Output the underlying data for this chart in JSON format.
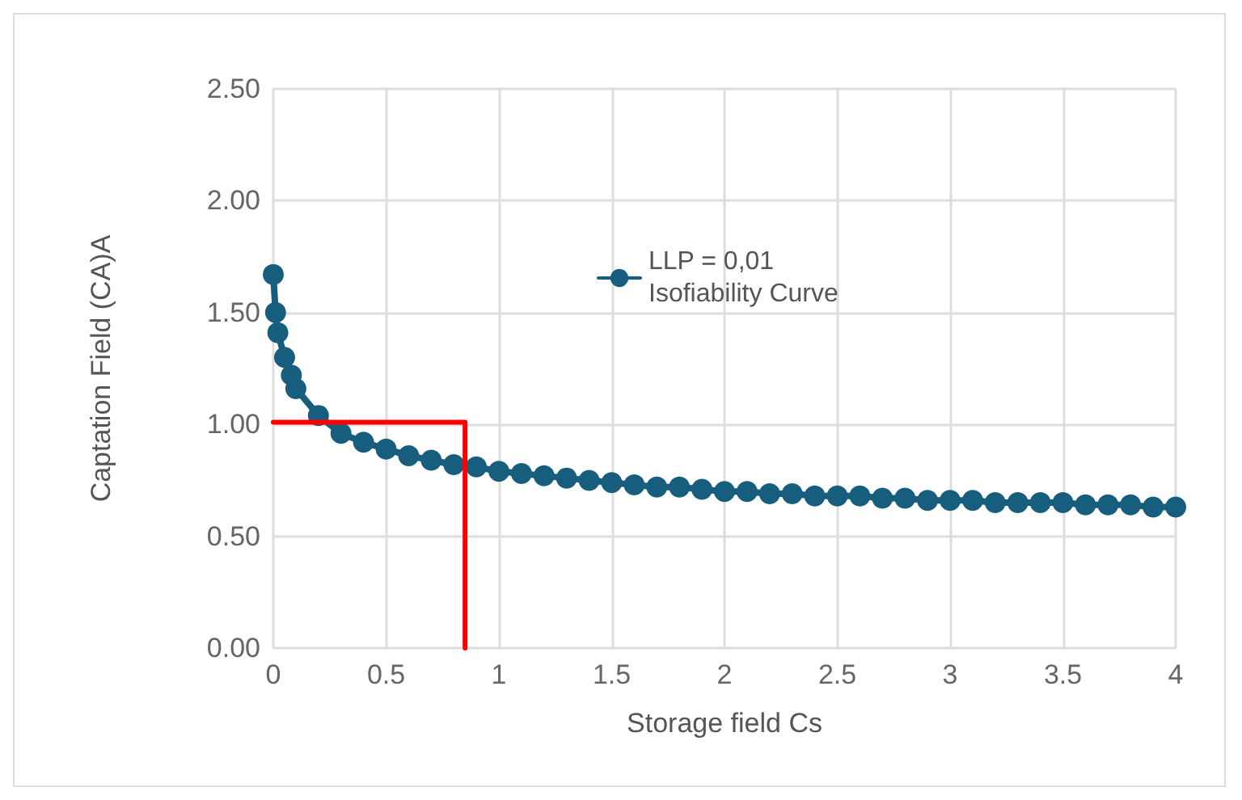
{
  "chart_data": {
    "type": "line",
    "xlabel": "Storage field Cs",
    "ylabel": "Captation Field (CA)A",
    "xlim": [
      0,
      4
    ],
    "xticks": [
      0,
      0.5,
      1,
      1.5,
      2,
      2.5,
      3,
      3.5,
      4
    ],
    "ylim": [
      0,
      2.5
    ],
    "yticks": [
      {
        "value": 0,
        "label": "0.00"
      },
      {
        "value": 0.5,
        "label": "0.50"
      },
      {
        "value": 1,
        "label": "1.00"
      },
      {
        "value": 1.5,
        "label": "1.50"
      },
      {
        "value": 2,
        "label": "2.00"
      },
      {
        "value": 2.5,
        "label": "2.50"
      }
    ],
    "grid": true,
    "legend": "top",
    "marker": "circle",
    "line_style": "solid",
    "series": [
      {
        "name": "LLP = 0,01\nIsofiability Curve",
        "color": "#175e7e",
        "x": [
          0,
          0.01,
          0.02,
          0.05,
          0.08,
          0.1,
          0.2,
          0.3,
          0.4,
          0.5,
          0.6,
          0.7,
          0.8,
          0.9,
          1.0,
          1.1,
          1.2,
          1.3,
          1.4,
          1.5,
          1.6,
          1.7,
          1.8,
          1.9,
          2.0,
          2.1,
          2.2,
          2.3,
          2.4,
          2.5,
          2.6,
          2.7,
          2.8,
          2.9,
          3.0,
          3.1,
          3.2,
          3.3,
          3.4,
          3.5,
          3.6,
          3.7,
          3.8,
          3.9,
          4.0
        ],
        "values": [
          1.67,
          1.5,
          1.41,
          1.3,
          1.22,
          1.16,
          1.04,
          0.96,
          0.92,
          0.89,
          0.86,
          0.84,
          0.82,
          0.81,
          0.79,
          0.78,
          0.77,
          0.76,
          0.75,
          0.74,
          0.73,
          0.72,
          0.72,
          0.71,
          0.7,
          0.7,
          0.69,
          0.69,
          0.68,
          0.68,
          0.68,
          0.67,
          0.67,
          0.66,
          0.66,
          0.66,
          0.65,
          0.65,
          0.65,
          0.65,
          0.64,
          0.64,
          0.64,
          0.63,
          0.63
        ]
      },
      {
        "color": "#ff0000",
        "marker": "none",
        "x": [
          0,
          0.85,
          0.85
        ],
        "values": [
          1.01,
          1.01,
          0
        ]
      }
    ]
  }
}
